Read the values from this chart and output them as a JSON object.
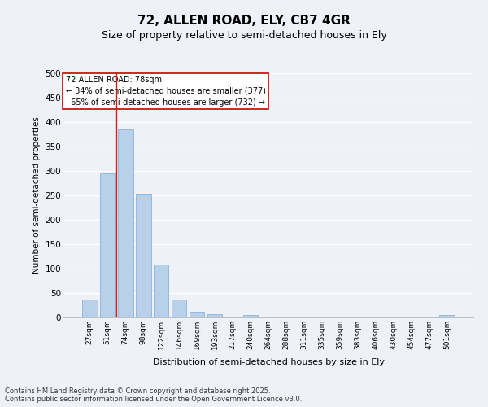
{
  "title": "72, ALLEN ROAD, ELY, CB7 4GR",
  "subtitle": "Size of property relative to semi-detached houses in Ely",
  "xlabel": "Distribution of semi-detached houses by size in Ely",
  "ylabel": "Number of semi-detached properties",
  "property_label": "72 ALLEN ROAD: 78sqm",
  "smaller_pct": "34% of semi-detached houses are smaller (377)",
  "larger_pct": "65% of semi-detached houses are larger (732)",
  "footer_line1": "Contains HM Land Registry data © Crown copyright and database right 2025.",
  "footer_line2": "Contains public sector information licensed under the Open Government Licence v3.0.",
  "categories": [
    "27sqm",
    "51sqm",
    "74sqm",
    "98sqm",
    "122sqm",
    "146sqm",
    "169sqm",
    "193sqm",
    "217sqm",
    "240sqm",
    "264sqm",
    "288sqm",
    "311sqm",
    "335sqm",
    "359sqm",
    "383sqm",
    "406sqm",
    "430sqm",
    "454sqm",
    "477sqm",
    "501sqm"
  ],
  "values": [
    37,
    295,
    385,
    254,
    108,
    37,
    11,
    6,
    0,
    5,
    0,
    0,
    0,
    0,
    0,
    0,
    0,
    0,
    0,
    0,
    5
  ],
  "bar_color": "#b8d0ea",
  "bar_edge_color": "#8ab4d8",
  "vline_x": 1.5,
  "vline_color": "#cc2222",
  "annotation_box_color": "#cc0000",
  "ylim": [
    0,
    500
  ],
  "yticks": [
    0,
    50,
    100,
    150,
    200,
    250,
    300,
    350,
    400,
    450,
    500
  ],
  "background_color": "#eef2f8",
  "plot_background": "#eef2f8",
  "grid_color": "#ffffff",
  "title_fontsize": 11,
  "subtitle_fontsize": 9,
  "footer_fontsize": 6
}
